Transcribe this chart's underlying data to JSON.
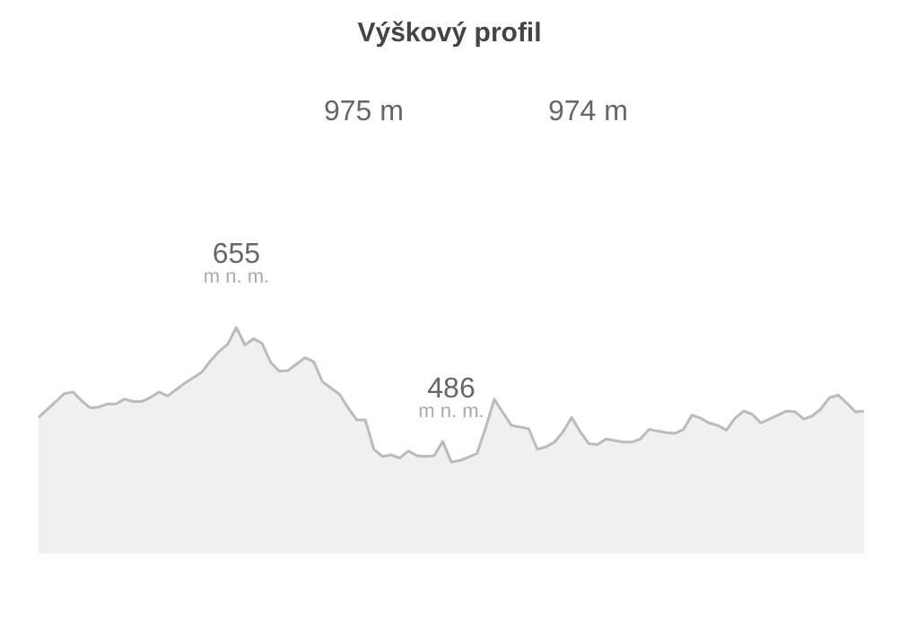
{
  "chart_data": {
    "type": "area",
    "title": "Výškový profil",
    "color": "#bbbbbb",
    "categories": [
      null,
      null,
      null,
      null,
      null,
      null,
      null,
      null,
      null,
      null,
      null,
      null,
      null,
      null,
      null,
      null,
      null,
      null,
      null,
      null,
      null,
      null,
      null,
      null,
      null,
      null,
      null,
      null,
      null,
      null,
      null,
      null,
      null,
      null,
      null,
      null,
      null,
      null,
      null,
      null,
      null,
      null,
      null,
      null,
      null,
      null,
      null,
      null,
      null,
      null,
      null,
      null,
      null,
      null,
      null,
      null,
      null,
      null,
      null,
      null,
      null,
      null,
      null,
      null,
      null,
      null,
      null,
      null,
      null,
      null,
      null,
      null,
      null,
      null,
      null,
      null,
      null,
      null,
      null,
      null,
      null,
      null,
      null,
      null,
      null,
      null,
      null,
      null,
      null,
      null,
      null,
      null,
      null,
      null,
      null,
      null,
      null
    ],
    "values": [
      542,
      552,
      562,
      572,
      574,
      563,
      554,
      555,
      559,
      559,
      565,
      562,
      562,
      567,
      574,
      569,
      577,
      585,
      592,
      599,
      613,
      625,
      634,
      655,
      633,
      641,
      635,
      611,
      600,
      601,
      609,
      617,
      612,
      587,
      579,
      571,
      554,
      539,
      539,
      502,
      493,
      495,
      491,
      500,
      494,
      493,
      494,
      512,
      486,
      488,
      492,
      497,
      529,
      565,
      548,
      532,
      530,
      528,
      502,
      505,
      511,
      524,
      542,
      524,
      509,
      508,
      515,
      513,
      511,
      511,
      515,
      527,
      525,
      523,
      522,
      527,
      545,
      541,
      535,
      532,
      526,
      541,
      550,
      546,
      535,
      540,
      545,
      550,
      549,
      540,
      544,
      553,
      567,
      570,
      560,
      549,
      550
    ],
    "value_labels": [
      null,
      null,
      null,
      null,
      null,
      null,
      null,
      null,
      null,
      null,
      null,
      null,
      null,
      null,
      null,
      null,
      null,
      null,
      null,
      null,
      null,
      null,
      null,
      "655\nm n. m.",
      null,
      null,
      null,
      null,
      null,
      null,
      null,
      null,
      null,
      null,
      null,
      null,
      null,
      null,
      null,
      null,
      null,
      null,
      null,
      null,
      null,
      null,
      null,
      null,
      "486\nm n. m.",
      null,
      null,
      null,
      null,
      null,
      null,
      null,
      null,
      null,
      null,
      null,
      null,
      null,
      null,
      null,
      null,
      null,
      null,
      null,
      null,
      null,
      null,
      null,
      null,
      null,
      null,
      null,
      null,
      null,
      null,
      null,
      null,
      null,
      null,
      null,
      null,
      null,
      null,
      null,
      null,
      null,
      null,
      null,
      null,
      null,
      null,
      null,
      null
    ],
    "annotations": [
      "975 m",
      "974 m"
    ]
  }
}
